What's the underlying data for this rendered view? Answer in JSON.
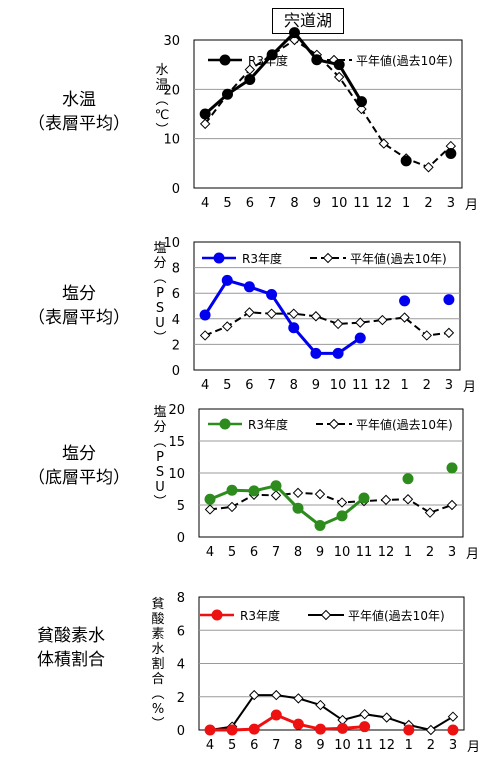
{
  "title": "宍道湖",
  "panel_labels": [
    [
      "水温",
      "（表層平均）"
    ],
    [
      "塩分",
      "（表層平均）"
    ],
    [
      "塩分",
      "（底層平均）"
    ],
    [
      "貧酸素水",
      "体積割合"
    ]
  ],
  "month_unit": "月",
  "chart_data": [
    {
      "type": "line",
      "categories": [
        "4",
        "5",
        "6",
        "7",
        "8",
        "9",
        "10",
        "11",
        "12",
        "1",
        "2",
        "3"
      ],
      "ylabel": "水温(℃)",
      "ylim": [
        0,
        30
      ],
      "yticks": [
        0,
        10,
        20,
        30
      ],
      "grid": true,
      "legend": "top",
      "series": [
        {
          "name": "R3年度",
          "color": "#000000",
          "values": [
            15,
            19,
            22,
            27,
            31.5,
            26,
            25,
            17.5,
            null,
            5.5,
            null,
            7
          ]
        },
        {
          "name": "平年値(過去10年)",
          "color": "#000000",
          "dashed": true,
          "values": [
            13,
            19,
            24,
            27,
            30,
            27,
            22.5,
            16,
            9,
            6,
            4.2,
            8.5
          ]
        }
      ]
    },
    {
      "type": "line",
      "categories": [
        "4",
        "5",
        "6",
        "7",
        "8",
        "9",
        "10",
        "11",
        "12",
        "1",
        "2",
        "3"
      ],
      "ylabel": "塩分(PSU)",
      "ylim": [
        0,
        10
      ],
      "yticks": [
        0,
        2,
        4,
        6,
        8,
        10
      ],
      "grid": true,
      "legend": "top",
      "series": [
        {
          "name": "R3年度",
          "color": "#0000ee",
          "values": [
            4.3,
            7.0,
            6.5,
            5.9,
            3.3,
            1.3,
            1.3,
            2.5,
            null,
            5.4,
            null,
            5.5
          ]
        },
        {
          "name": "平年値(過去10年)",
          "color": "#000000",
          "dashed": true,
          "values": [
            2.7,
            3.4,
            4.5,
            4.4,
            4.4,
            4.2,
            3.6,
            3.7,
            3.9,
            4.1,
            2.7,
            2.9
          ]
        }
      ]
    },
    {
      "type": "line",
      "categories": [
        "4",
        "5",
        "6",
        "7",
        "8",
        "9",
        "10",
        "11",
        "12",
        "1",
        "2",
        "3"
      ],
      "ylabel": "塩分(PSU)",
      "ylim": [
        0,
        20
      ],
      "yticks": [
        0,
        5,
        10,
        15,
        20
      ],
      "grid": true,
      "legend": "top",
      "series": [
        {
          "name": "R3年度",
          "color": "#2e8b1e",
          "values": [
            5.9,
            7.3,
            7.2,
            8.0,
            4.5,
            1.8,
            3.3,
            6.1,
            null,
            9.1,
            null,
            10.8
          ]
        },
        {
          "name": "平年値(過去10年)",
          "color": "#000000",
          "dashed": true,
          "values": [
            4.3,
            4.7,
            6.6,
            6.5,
            6.9,
            6.7,
            5.4,
            5.6,
            5.8,
            5.9,
            3.8,
            5.0
          ]
        }
      ]
    },
    {
      "type": "line",
      "categories": [
        "4",
        "5",
        "6",
        "7",
        "8",
        "9",
        "10",
        "11",
        "12",
        "1",
        "2",
        "3"
      ],
      "ylabel": "貧酸素水割合(%)",
      "ylim": [
        0,
        8
      ],
      "yticks": [
        0,
        2,
        4,
        6,
        8
      ],
      "grid": true,
      "legend": "top",
      "series": [
        {
          "name": "R3年度",
          "color": "#ee1111",
          "values": [
            0,
            0,
            0.05,
            0.9,
            0.35,
            0.05,
            0.1,
            0.2,
            null,
            0,
            null,
            0
          ]
        },
        {
          "name": "平年値(過去10年)",
          "color": "#000000",
          "dashed": false,
          "values": [
            0,
            0.2,
            2.1,
            2.1,
            1.9,
            1.5,
            0.6,
            0.95,
            0.75,
            0.3,
            0,
            0.8
          ]
        }
      ]
    }
  ]
}
